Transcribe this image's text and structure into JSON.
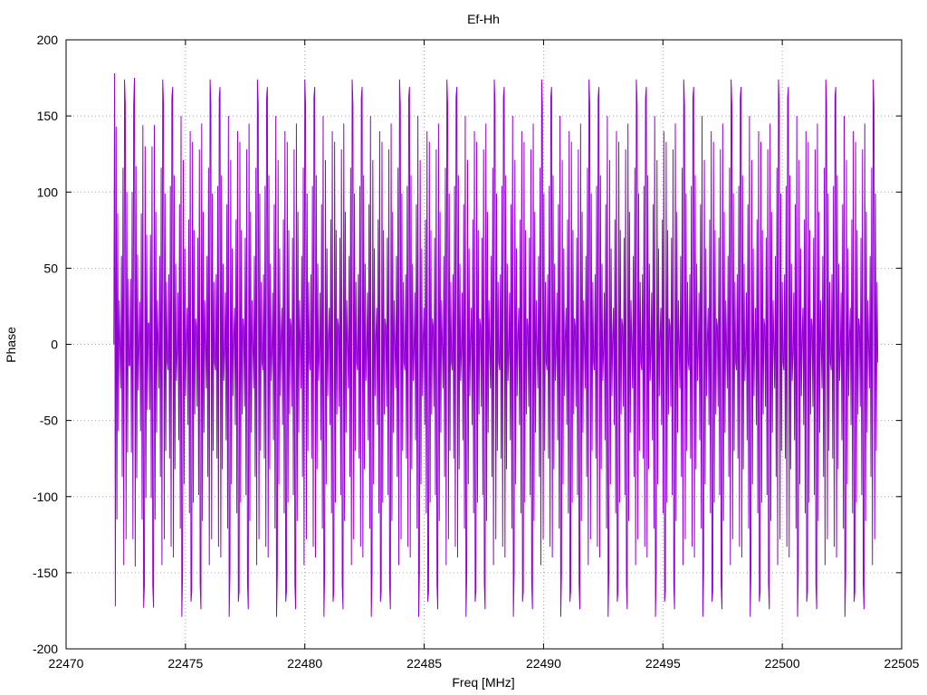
{
  "chart_data": {
    "type": "line",
    "title": "Ef-Hh",
    "xlabel": "Freq [MHz]",
    "ylabel": "Phase",
    "xlim": [
      22470,
      22505
    ],
    "ylim": [
      -200,
      200
    ],
    "xticks": [
      "22470",
      "22475",
      "22480",
      "22485",
      "22490",
      "22495",
      "22500",
      "22505"
    ],
    "yticks": [
      "200",
      "150",
      "100",
      "50",
      "0",
      "-50",
      "-100",
      "-150",
      "-200"
    ],
    "grid": true,
    "series": [
      {
        "color": "#9400d3",
        "x_range": [
          22472,
          22504
        ],
        "x_step": 0.032,
        "values": [
          0,
          178,
          -172,
          143,
          -115,
          86,
          -57,
          29,
          0,
          -29,
          58,
          -87,
          116,
          -145,
          174,
          157,
          -128,
          100,
          -71,
          43,
          -14,
          -14,
          43,
          -71,
          100,
          -128,
          157,
          175,
          -146,
          117,
          -88,
          59,
          -30,
          1,
          28,
          -57,
          86,
          -115,
          144,
          -173,
          -158,
          130,
          -101,
          72,
          -43,
          14,
          14,
          -43,
          72,
          -101,
          130,
          -158,
          -173,
          144,
          -115,
          87,
          -58,
          29,
          0,
          -29,
          58,
          -87,
          116,
          -145,
          174,
          157,
          -128,
          99,
          -70,
          41,
          -12,
          -17,
          46,
          -75,
          104,
          -133,
          162,
          169,
          -140,
          111,
          -82,
          53,
          -24,
          -5,
          34,
          -63,
          92,
          -121,
          150,
          -179,
          -150,
          121,
          -92,
          63,
          -34,
          5,
          24,
          -53,
          82,
          -111,
          140,
          -169,
          -162,
          133,
          -104,
          75,
          -46,
          17,
          12,
          -41,
          70,
          -99,
          128,
          -157,
          -174,
          145,
          -116,
          87,
          -58,
          29,
          0,
          -29,
          58,
          -87,
          116,
          -145,
          174,
          157,
          -128,
          99,
          -70,
          41,
          -12,
          -17,
          46,
          -75,
          104,
          -133,
          162,
          169,
          -140,
          111,
          -82,
          53,
          -24,
          -5,
          34,
          -63,
          92,
          -121,
          150,
          -179,
          -150,
          121,
          -92,
          63,
          -34,
          5,
          24,
          -53,
          82,
          -111,
          140,
          -169,
          -162,
          133,
          -104,
          75,
          -46,
          17,
          12,
          -41,
          70,
          -99,
          128,
          -157,
          -174,
          145,
          -116,
          87,
          -58,
          29,
          0,
          -29,
          58,
          -87,
          116,
          -145,
          174,
          157,
          -128,
          99,
          -70,
          41,
          -12,
          -17,
          46,
          -75,
          104,
          -133,
          162,
          169,
          -140,
          111,
          -82,
          53,
          -24,
          -5,
          34,
          -63,
          92,
          -121,
          150,
          -179,
          -150,
          121,
          -92,
          63,
          -34,
          5,
          24,
          -53,
          82,
          -111,
          140,
          -169,
          -162,
          133,
          -104,
          75,
          -46,
          17,
          12,
          -41,
          70,
          -99,
          128,
          -157,
          -174,
          145,
          -116,
          87,
          -58,
          29,
          0,
          -29,
          58,
          -87,
          116,
          -145,
          174,
          157,
          -128,
          99,
          -70,
          41,
          -12,
          -17,
          46,
          -75,
          104,
          -133,
          162,
          169,
          -140,
          111,
          -82,
          53,
          -24,
          -5,
          34,
          -63,
          92,
          -121,
          150,
          -179,
          -150,
          121,
          -92,
          63,
          -34,
          5,
          24,
          -53,
          82,
          -111,
          140,
          -169,
          -162,
          133,
          -104,
          75,
          -46,
          17,
          12,
          -41,
          70,
          -99,
          128,
          -157,
          -174,
          145,
          -116,
          87,
          -58,
          29,
          0,
          -29,
          58,
          -87,
          116,
          -145,
          174,
          157,
          -128,
          99,
          -70,
          41,
          -12,
          -17,
          46,
          -75,
          104,
          -133,
          162,
          169,
          -140,
          111,
          -82,
          53,
          -24,
          -5,
          34,
          -63,
          92,
          -121,
          150,
          -179,
          -150,
          121,
          -92,
          63,
          -34,
          5,
          24,
          -53,
          82,
          -111,
          140,
          -169,
          -162,
          133,
          -104,
          75,
          -46,
          17,
          12,
          -41,
          70,
          -99,
          128,
          -157,
          -174,
          145,
          -116,
          87,
          -58,
          29,
          0,
          -29,
          58,
          -87,
          116,
          -145,
          174,
          157,
          -128,
          99,
          -70,
          41,
          -12,
          -17,
          46,
          -75,
          104,
          -133,
          162,
          169,
          -140,
          111,
          -82,
          53,
          -24,
          -5,
          34,
          -63,
          92,
          -121,
          150,
          -179,
          -150,
          121,
          -92,
          63,
          -34,
          5,
          24,
          -53,
          82,
          -111,
          140,
          -169,
          -162,
          133,
          -104,
          75,
          -46,
          17,
          12,
          -41,
          70,
          -99,
          128,
          -157,
          -174,
          145,
          -116,
          87,
          -58,
          29,
          0,
          -29,
          58,
          -87,
          116,
          -145,
          174,
          157,
          -128,
          99,
          -70,
          41,
          -12,
          -17,
          46,
          -75,
          104,
          -133,
          162,
          169,
          -140,
          111,
          -82,
          53,
          -24,
          -5,
          34,
          -63,
          92,
          -121,
          150,
          -179,
          -150,
          121,
          -92,
          63,
          -34,
          5,
          24,
          -53,
          82,
          -111,
          140,
          -169,
          -162,
          133,
          -104,
          75,
          -46,
          17,
          12,
          -41,
          70,
          -99,
          128,
          -157,
          -174,
          145,
          -116,
          87,
          -58,
          29,
          0,
          -29,
          58,
          -87,
          116,
          -145,
          174,
          157,
          -128,
          99,
          -70,
          41,
          -12,
          -17,
          46,
          -75,
          104,
          -133,
          162,
          169,
          -140,
          111,
          -82,
          53,
          -24,
          -5,
          34,
          -63,
          92,
          -121,
          150,
          -179,
          -150,
          121,
          -92,
          63,
          -34,
          5,
          24,
          -53,
          82,
          -111,
          140,
          -169,
          -162,
          133,
          -104,
          75,
          -46,
          17,
          12,
          -41,
          70,
          -99,
          128,
          -157,
          -174,
          145,
          -116,
          87,
          -58,
          29,
          0,
          -29,
          58,
          -87,
          116,
          -145,
          174,
          157,
          -128,
          99,
          -70,
          41,
          -12,
          -17,
          46,
          -75,
          104,
          -133,
          162,
          169,
          -140,
          111,
          -82,
          53,
          -24,
          -5,
          34,
          -63,
          92,
          -121,
          150,
          -179,
          -150,
          121,
          -92,
          63,
          -34,
          5,
          24,
          -53,
          82,
          -111,
          140,
          -169,
          -162,
          133,
          -104,
          75,
          -46,
          17,
          12,
          -41,
          70,
          -99,
          128,
          -157,
          -174,
          145,
          -116,
          87,
          -58,
          29,
          0,
          -29,
          58,
          -87,
          116,
          -145,
          174,
          157,
          -128,
          99,
          -70,
          41,
          -12,
          -17,
          46,
          -75,
          104,
          -133,
          162,
          169,
          -140,
          111,
          -82,
          53,
          -24,
          -5,
          34,
          -63,
          92,
          -121,
          150,
          -179,
          -150,
          121,
          -92,
          63,
          -34,
          5,
          24,
          -53,
          82,
          -111,
          140,
          -169,
          -162,
          133,
          -104,
          75,
          -46,
          17,
          12,
          -41,
          70,
          -99,
          128,
          -157,
          -174,
          145,
          -116,
          87,
          -58,
          29,
          0,
          -29,
          58,
          -87,
          116,
          -145,
          174,
          157,
          -128,
          99,
          -70,
          41,
          -12,
          -17,
          46,
          -75,
          104,
          -133,
          162,
          169,
          -140,
          111,
          -82,
          53,
          -24,
          -5,
          34,
          -63,
          92,
          -121,
          150,
          -179,
          -150,
          121,
          -92,
          63,
          -34,
          5,
          24,
          -53,
          82,
          -111,
          140,
          -169,
          -162,
          133,
          -104,
          75,
          -46,
          17,
          12,
          -41,
          70,
          -99,
          128,
          -157,
          -174,
          145,
          -116,
          87,
          -58,
          29,
          0,
          -29,
          58,
          -87,
          116,
          -145,
          174,
          157,
          -128,
          99,
          -70,
          41,
          -12,
          -17,
          46,
          -75,
          104,
          -133,
          162,
          169,
          -140,
          111,
          -82,
          53,
          -24,
          -5,
          34,
          -63,
          92,
          -121,
          150,
          -179,
          -150,
          121,
          -92,
          63,
          -34,
          5,
          24,
          -53,
          82,
          -111,
          140,
          -169,
          -162,
          133,
          -104,
          75,
          -46,
          17,
          12,
          -41,
          70,
          -99,
          128,
          -157,
          -174,
          145,
          -116,
          87,
          -58,
          29,
          0,
          -29,
          58,
          -87,
          116,
          -145,
          174,
          157,
          -128,
          99,
          -70,
          41,
          -12,
          -17,
          46,
          -75,
          104,
          -133,
          162,
          169,
          -140,
          111,
          -82,
          53,
          -24,
          -5,
          34,
          -63,
          92,
          -121,
          150,
          -179,
          -150,
          121,
          -92,
          63,
          -34,
          5,
          24,
          -53,
          82,
          -111,
          140,
          -169,
          -162,
          133,
          -104,
          75,
          -46,
          17,
          12,
          -41,
          70,
          -99,
          128,
          -157,
          -174,
          145,
          -116,
          87,
          -58,
          29,
          0,
          -29,
          58,
          -87,
          116,
          -145,
          174,
          157,
          -128,
          99,
          -70,
          41,
          -12,
          -17,
          46,
          -75,
          104,
          -133,
          162,
          169,
          -140,
          111,
          -82,
          53,
          -24,
          -5,
          34,
          -63,
          92,
          -121,
          150,
          -179,
          -150,
          121,
          -92,
          63,
          -34,
          5,
          24,
          -53,
          82,
          -111,
          140,
          -169,
          -162,
          133,
          -104,
          75,
          -46,
          17,
          12,
          -41,
          70,
          -99,
          128,
          -157,
          -174,
          145,
          -116,
          87,
          -58,
          29,
          0,
          -29,
          58,
          -87,
          116,
          -145,
          174,
          157,
          -128,
          99,
          -70,
          41,
          -12,
          -17,
          46,
          -75,
          104,
          -133,
          162,
          169,
          -140,
          111,
          -82,
          53,
          -24,
          -5,
          34,
          -63,
          92,
          -121,
          150,
          -179,
          -150,
          121,
          -92,
          63,
          -34,
          5,
          24,
          -53,
          82,
          -111,
          140,
          -169,
          -162,
          133,
          -104,
          75,
          -46,
          17,
          12,
          -41,
          70,
          -99,
          128,
          -157,
          -174,
          145,
          -116,
          87,
          -58,
          29,
          0,
          -29,
          58,
          -87,
          116,
          -145,
          174,
          157,
          -128,
          99,
          -70,
          41,
          -12,
          -17,
          46,
          -75,
          104,
          -133,
          162,
          169,
          -140,
          111,
          -82,
          53,
          -24,
          -5,
          34,
          -63,
          92,
          -121,
          150,
          -179
        ]
      }
    ]
  }
}
